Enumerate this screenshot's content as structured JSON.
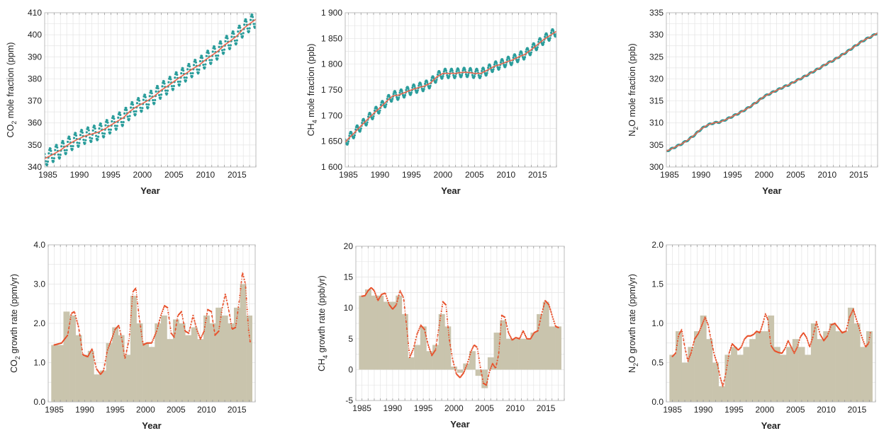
{
  "colors": {
    "grid": "#e4e4e4",
    "frame": "#bdbdbd",
    "monthly_dot": "#2a9d9b",
    "trend_line": "#e7664f",
    "growth_bar": "#c9c4ad",
    "growth_curve": "#e8502a"
  },
  "chart_data": [
    {
      "type": "line",
      "xlabel": "Year",
      "ylabel_main": "CO",
      "ylabel_sub": "2",
      "ylabel_rest": " mole fraction (ppm)",
      "xlim": [
        1984.5,
        2018
      ],
      "ylim": [
        340,
        410
      ],
      "xticks": [
        1985,
        1990,
        1995,
        2000,
        2005,
        2010,
        2015
      ],
      "yticks": [
        340,
        350,
        360,
        370,
        380,
        390,
        400,
        410
      ],
      "ytick_labels": [
        "340",
        "350",
        "360",
        "370",
        "380",
        "390",
        "400",
        "410"
      ],
      "seasonal_amplitude": 3.5,
      "series": [
        {
          "style": "monthly-dots",
          "color_key": "monthly_dot"
        },
        {
          "style": "trend-line",
          "color_key": "trend_line",
          "x": [
            1984.5,
            1985,
            1986,
            1987,
            1988,
            1989,
            1990,
            1991,
            1992,
            1993,
            1994,
            1995,
            1996,
            1997,
            1998,
            1999,
            2000,
            2001,
            2002,
            2003,
            2004,
            2005,
            2006,
            2007,
            2008,
            2009,
            2010,
            2011,
            2012,
            2013,
            2014,
            2015,
            2016,
            2017,
            2018
          ],
          "y": [
            343.8,
            344.5,
            346.0,
            347.6,
            349.7,
            351.5,
            352.9,
            354.2,
            355.0,
            355.8,
            357.2,
            359.0,
            360.7,
            362.4,
            365.2,
            367.3,
            368.8,
            370.4,
            372.4,
            374.9,
            376.7,
            378.8,
            380.8,
            382.6,
            384.6,
            386.2,
            388.6,
            390.6,
            392.6,
            395.3,
            397.3,
            399.5,
            402.8,
            405.0,
            407.0
          ]
        }
      ]
    },
    {
      "type": "line",
      "xlabel": "Year",
      "ylabel_main": "CH",
      "ylabel_sub": "4",
      "ylabel_rest": " mole fraction (ppb)",
      "xlim": [
        1984.5,
        2018
      ],
      "ylim": [
        1600,
        1900
      ],
      "xticks": [
        1985,
        1990,
        1995,
        2000,
        2005,
        2010,
        2015
      ],
      "yticks": [
        1600,
        1650,
        1700,
        1750,
        1800,
        1850,
        1900
      ],
      "ytick_labels": [
        "1 600",
        "1 650",
        "1 700",
        "1 750",
        "1 800",
        "1 850",
        "1 900"
      ],
      "seasonal_amplitude": 9,
      "series": [
        {
          "style": "monthly-dots",
          "color_key": "monthly_dot"
        },
        {
          "style": "trend-line",
          "color_key": "trend_line",
          "x": [
            1984.5,
            1985,
            1986,
            1987,
            1988,
            1989,
            1990,
            1991,
            1992,
            1993,
            1994,
            1995,
            1996,
            1997,
            1998,
            1999,
            2000,
            2001,
            2002,
            2003,
            2004,
            2005,
            2006,
            2007,
            2008,
            2009,
            2010,
            2011,
            2012,
            2013,
            2014,
            2015,
            2016,
            2017,
            2018
          ],
          "y": [
            1648,
            1655,
            1667,
            1680,
            1692,
            1704,
            1715,
            1727,
            1738,
            1740,
            1745,
            1750,
            1754,
            1757,
            1763,
            1775,
            1782,
            1782,
            1782,
            1784,
            1784,
            1782,
            1782,
            1788,
            1795,
            1799,
            1804,
            1808,
            1814,
            1819,
            1828,
            1838,
            1848,
            1856,
            1864
          ]
        }
      ]
    },
    {
      "type": "line",
      "xlabel": "Year",
      "ylabel_main": "N",
      "ylabel_sub": "2",
      "ylabel_rest": "O mole fraction (ppb)",
      "xlim": [
        1984.5,
        2018
      ],
      "ylim": [
        300,
        335
      ],
      "xticks": [
        1985,
        1990,
        1995,
        2000,
        2005,
        2010,
        2015
      ],
      "yticks": [
        300,
        305,
        310,
        315,
        320,
        325,
        330,
        335
      ],
      "ytick_labels": [
        "300",
        "305",
        "310",
        "315",
        "320",
        "325",
        "330",
        "335"
      ],
      "seasonal_amplitude": 0.15,
      "series": [
        {
          "style": "monthly-dots",
          "color_key": "monthly_dot"
        },
        {
          "style": "trend-line",
          "color_key": "trend_line",
          "x": [
            1984.5,
            1985,
            1986,
            1987,
            1988,
            1989,
            1990,
            1991,
            1992,
            1993,
            1994,
            1995,
            1996,
            1997,
            1998,
            1999,
            2000,
            2001,
            2002,
            2003,
            2004,
            2005,
            2006,
            2007,
            2008,
            2009,
            2010,
            2011,
            2012,
            2013,
            2014,
            2015,
            2016,
            2017,
            2018
          ],
          "y": [
            303.6,
            303.9,
            304.6,
            305.3,
            306.2,
            307.3,
            308.6,
            309.5,
            310.0,
            310.2,
            310.8,
            311.5,
            312.2,
            313.0,
            313.9,
            314.9,
            316.0,
            316.7,
            317.4,
            318.1,
            318.7,
            319.5,
            320.2,
            321.0,
            321.8,
            322.6,
            323.5,
            324.2,
            325.1,
            326.0,
            327.0,
            328.0,
            328.9,
            329.6,
            330.4
          ]
        }
      ]
    },
    {
      "type": "bar",
      "xlabel": "Year",
      "ylabel_main": "CO",
      "ylabel_sub": "2",
      "ylabel_rest": " growth rate (ppm/yr)",
      "xlim": [
        1984,
        2018
      ],
      "ylim": [
        0,
        4
      ],
      "xticks": [
        1985,
        1990,
        1995,
        2000,
        2005,
        2010,
        2015
      ],
      "yticks": [
        0,
        1,
        2,
        3,
        4
      ],
      "ytick_labels": [
        "0.0",
        "1.0",
        "2.0",
        "3.0",
        "4.0"
      ],
      "series": [
        {
          "name": "",
          "style": "annual-bars",
          "color_key": "growth_bar",
          "x": [
            1985,
            1986,
            1987,
            1988,
            1989,
            1990,
            1991,
            1992,
            1993,
            1994,
            1995,
            1996,
            1997,
            1998,
            1999,
            2000,
            2001,
            2002,
            2003,
            2004,
            2005,
            2006,
            2007,
            2008,
            2009,
            2010,
            2011,
            2012,
            2013,
            2014,
            2015,
            2016,
            2017
          ],
          "y": [
            1.45,
            1.45,
            2.3,
            2.2,
            1.7,
            1.2,
            1.3,
            0.7,
            0.8,
            1.5,
            1.9,
            1.7,
            1.2,
            2.7,
            2.0,
            1.5,
            1.4,
            2.0,
            2.2,
            1.6,
            2.1,
            2.0,
            1.7,
            1.9,
            1.6,
            2.2,
            2.0,
            2.4,
            2.2,
            2.0,
            2.4,
            3.0,
            2.2
          ]
        },
        {
          "name": "",
          "style": "growth-curve",
          "color_key": "growth_curve",
          "x": [
            1985.0,
            1986.2,
            1987.2,
            1987.8,
            1988.3,
            1989.0,
            1989.7,
            1990.5,
            1991.2,
            1991.9,
            1992.6,
            1993.1,
            1993.7,
            1994.3,
            1995.0,
            1995.6,
            1996.1,
            1996.6,
            1997.3,
            1997.9,
            1998.4,
            1998.9,
            1999.6,
            2000.2,
            2001.0,
            2001.8,
            2002.5,
            2003.1,
            2003.6,
            2004.2,
            2004.7,
            2005.3,
            2005.9,
            2006.5,
            2007.1,
            2007.8,
            2008.4,
            2009.0,
            2009.6,
            2010.2,
            2010.8,
            2011.4,
            2012.0,
            2012.6,
            2013.1,
            2013.7,
            2014.2,
            2014.8,
            2015.4,
            2015.9,
            2016.4,
            2016.9,
            2017.2
          ],
          "y": [
            1.45,
            1.5,
            1.7,
            2.25,
            2.3,
            1.9,
            1.2,
            1.15,
            1.35,
            0.85,
            0.7,
            0.8,
            1.3,
            1.55,
            1.85,
            1.95,
            1.6,
            1.1,
            1.6,
            2.8,
            2.9,
            2.2,
            1.45,
            1.5,
            1.5,
            1.8,
            2.2,
            2.45,
            2.4,
            1.75,
            1.65,
            2.2,
            2.3,
            1.8,
            1.75,
            2.2,
            1.85,
            1.6,
            1.8,
            2.35,
            2.3,
            1.7,
            1.8,
            2.4,
            2.75,
            2.3,
            1.85,
            1.9,
            2.6,
            3.3,
            3.0,
            1.85,
            1.5
          ]
        }
      ]
    },
    {
      "type": "bar",
      "xlabel": "Year",
      "ylabel_main": "CH",
      "ylabel_sub": "4",
      "ylabel_rest": " growth rate (ppb/yr)",
      "xlim": [
        1984,
        2018
      ],
      "ylim": [
        -5,
        20
      ],
      "xticks": [
        1985,
        1990,
        1995,
        2000,
        2005,
        2010,
        2015
      ],
      "yticks": [
        -5,
        0,
        5,
        10,
        15,
        20
      ],
      "ytick_labels": [
        "-5",
        "0",
        "5",
        "10",
        "15",
        "20"
      ],
      "series": [
        {
          "name": "",
          "style": "annual-bars",
          "color_key": "growth_bar",
          "x": [
            1985,
            1986,
            1987,
            1988,
            1989,
            1990,
            1991,
            1992,
            1993,
            1994,
            1995,
            1996,
            1997,
            1998,
            1999,
            2000,
            2001,
            2002,
            2003,
            2004,
            2005,
            2006,
            2007,
            2008,
            2009,
            2010,
            2011,
            2012,
            2013,
            2014,
            2015,
            2016,
            2017
          ],
          "y": [
            12,
            13,
            12,
            12,
            11,
            11,
            12,
            9,
            2,
            4,
            7,
            3,
            4,
            9,
            7,
            0.5,
            -0.5,
            1,
            3,
            -1,
            -3,
            2,
            6,
            8,
            5,
            5,
            5,
            5,
            6,
            9,
            11,
            7,
            7
          ]
        },
        {
          "name": "",
          "style": "growth-curve",
          "color_key": "growth_curve",
          "x": [
            1985.0,
            1985.5,
            1986.0,
            1986.5,
            1987.0,
            1987.6,
            1988.2,
            1988.8,
            1989.4,
            1990.0,
            1990.6,
            1991.2,
            1991.8,
            1992.3,
            1992.8,
            1993.4,
            1994.0,
            1994.6,
            1995.2,
            1995.8,
            1996.4,
            1997.0,
            1997.6,
            1998.2,
            1998.7,
            1999.2,
            1999.8,
            2000.4,
            2001.0,
            2001.6,
            2002.2,
            2002.8,
            2003.3,
            2003.8,
            2004.3,
            2004.8,
            2005.3,
            2005.8,
            2006.3,
            2006.8,
            2007.3,
            2007.8,
            2008.3,
            2008.9,
            2009.5,
            2010.1,
            2010.7,
            2011.3,
            2011.9,
            2012.5,
            2013.1,
            2013.7,
            2014.3,
            2014.9,
            2015.5,
            2016.1,
            2016.6,
            2017.1
          ],
          "y": [
            11.9,
            12.0,
            12.8,
            13.3,
            12.8,
            11.2,
            12.2,
            12.4,
            10.6,
            9.8,
            10.5,
            12.8,
            11.6,
            6.8,
            2.0,
            3.4,
            5.8,
            7.2,
            6.5,
            4.0,
            2.3,
            3.2,
            7.2,
            11.0,
            10.5,
            5.2,
            1.6,
            -0.7,
            -1.3,
            -0.5,
            1.0,
            3.0,
            4.0,
            3.6,
            0.5,
            -2.2,
            -2.5,
            -0.3,
            1.0,
            0.2,
            2.5,
            8.8,
            8.5,
            6.0,
            4.8,
            5.2,
            5.0,
            6.3,
            5.0,
            5.0,
            6.0,
            6.3,
            9.0,
            11.2,
            10.5,
            8.5,
            7.0,
            6.8
          ]
        }
      ]
    },
    {
      "type": "bar",
      "xlabel": "Year",
      "ylabel_main": "N",
      "ylabel_sub": "2",
      "ylabel_rest": "O growth rate (ppm/yr)",
      "xlim": [
        1984,
        2018
      ],
      "ylim": [
        0,
        2
      ],
      "xticks": [
        1985,
        1990,
        1995,
        2000,
        2005,
        2010,
        2015
      ],
      "yticks": [
        0,
        0.5,
        1,
        1.5,
        2
      ],
      "ytick_labels": [
        "0.0",
        "0.5",
        "1.0",
        "1.5",
        "2.0"
      ],
      "series": [
        {
          "name": "",
          "style": "annual-bars",
          "color_key": "growth_bar",
          "x": [
            1985,
            1986,
            1987,
            1988,
            1989,
            1990,
            1991,
            1992,
            1993,
            1994,
            1995,
            1996,
            1997,
            1998,
            1999,
            2000,
            2001,
            2002,
            2003,
            2004,
            2005,
            2006,
            2007,
            2008,
            2009,
            2010,
            2011,
            2012,
            2013,
            2014,
            2015,
            2016,
            2017
          ],
          "y": [
            0.6,
            0.9,
            0.5,
            0.7,
            0.9,
            1.1,
            0.8,
            0.5,
            0.2,
            0.6,
            0.7,
            0.6,
            0.7,
            0.8,
            0.9,
            0.9,
            1.1,
            0.7,
            0.6,
            0.7,
            0.8,
            0.7,
            0.6,
            1.0,
            0.8,
            0.9,
            1.0,
            0.9,
            0.9,
            1.2,
            1.0,
            0.7,
            0.9
          ]
        },
        {
          "name": "",
          "style": "growth-curve",
          "color_key": "growth_curve",
          "x": [
            1985.0,
            1985.5,
            1986.0,
            1986.5,
            1987.0,
            1987.5,
            1988.0,
            1988.6,
            1989.2,
            1989.8,
            1990.3,
            1990.8,
            1991.3,
            1991.8,
            1992.3,
            1992.8,
            1993.2,
            1993.7,
            1994.2,
            1994.7,
            1995.2,
            1995.7,
            1996.2,
            1996.7,
            1997.2,
            1997.7,
            1998.2,
            1998.7,
            1999.2,
            1999.7,
            2000.1,
            2000.5,
            2001.0,
            2001.6,
            2002.2,
            2002.8,
            2003.3,
            2003.8,
            2004.3,
            2004.8,
            2005.3,
            2005.8,
            2006.3,
            2006.8,
            2007.3,
            2007.8,
            2008.4,
            2009.0,
            2009.6,
            2010.2,
            2010.8,
            2011.4,
            2012.0,
            2012.6,
            2013.2,
            2013.8,
            2014.4,
            2014.9,
            2015.4,
            2015.9,
            2016.4,
            2016.9,
            2017.2
          ],
          "y": [
            0.58,
            0.62,
            0.85,
            0.92,
            0.7,
            0.52,
            0.62,
            0.8,
            0.87,
            0.98,
            1.08,
            0.98,
            0.78,
            0.6,
            0.48,
            0.3,
            0.2,
            0.38,
            0.62,
            0.74,
            0.7,
            0.66,
            0.7,
            0.8,
            0.84,
            0.84,
            0.86,
            0.9,
            0.88,
            1.0,
            1.12,
            1.05,
            0.72,
            0.65,
            0.63,
            0.62,
            0.68,
            0.78,
            0.7,
            0.62,
            0.7,
            0.83,
            0.88,
            0.82,
            0.7,
            0.82,
            1.02,
            0.86,
            0.78,
            0.84,
            0.98,
            1.0,
            0.94,
            0.88,
            0.9,
            1.08,
            1.18,
            1.05,
            0.93,
            0.8,
            0.7,
            0.75,
            0.9
          ]
        }
      ]
    }
  ]
}
